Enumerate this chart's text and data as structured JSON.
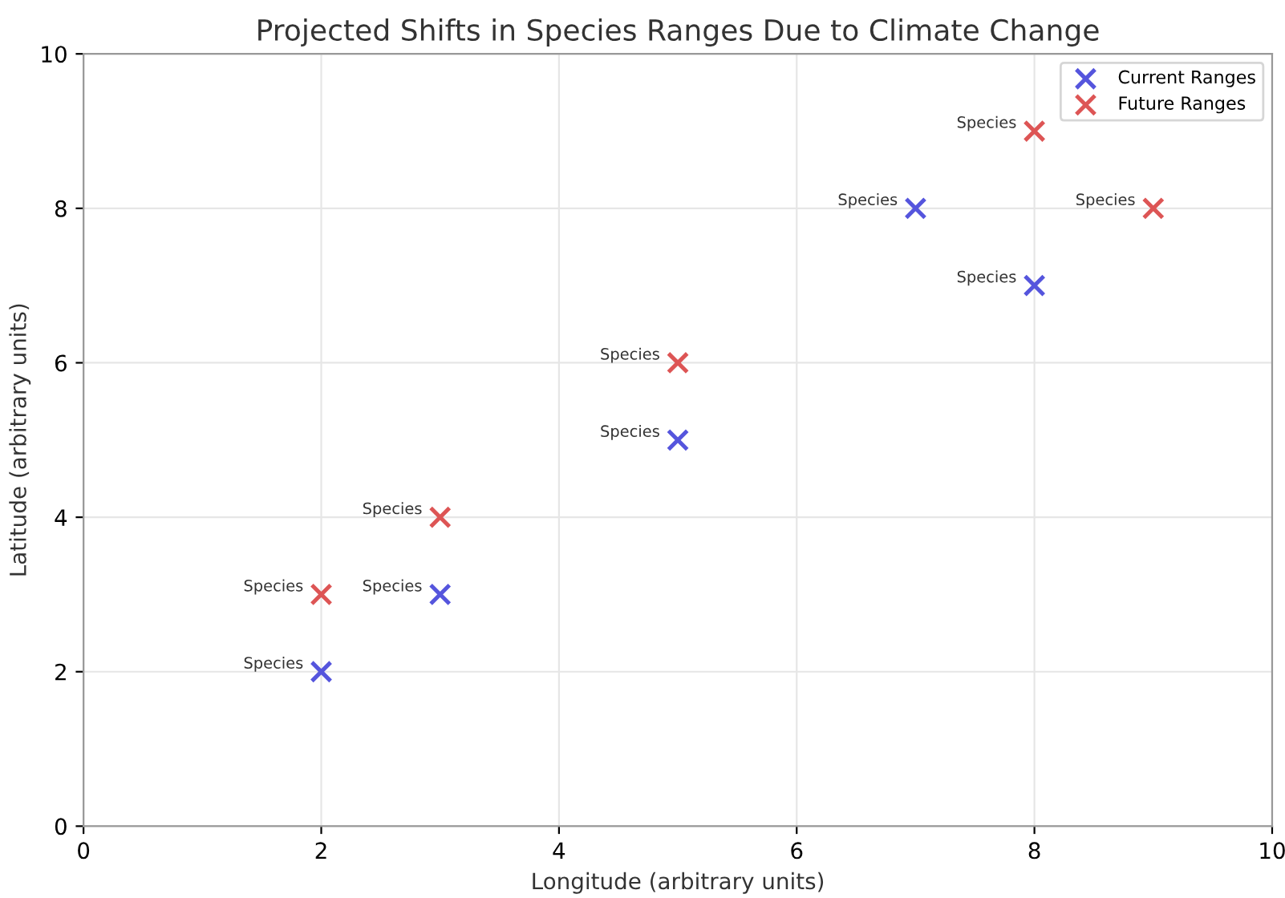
{
  "chart_data": {
    "type": "scatter",
    "title": "Projected Shifts in Species Ranges Due to Climate Change",
    "xlabel": "Longitude (arbitrary units)",
    "ylabel": "Latitude (arbitrary units)",
    "series": [
      {
        "name": "Current Ranges",
        "color": "#5555dd",
        "x": [
          2,
          3,
          5,
          7,
          8
        ],
        "values": [
          2,
          3,
          5,
          8,
          7
        ]
      },
      {
        "name": "Future Ranges",
        "color": "#dd5555",
        "x": [
          2,
          3,
          5,
          8,
          9
        ],
        "values": [
          3,
          4,
          6,
          9,
          8
        ]
      }
    ],
    "annotations": [
      {
        "text": "Species",
        "x": 2,
        "y": 2
      },
      {
        "text": "Species",
        "x": 3,
        "y": 3
      },
      {
        "text": "Species",
        "x": 5,
        "y": 5
      },
      {
        "text": "Species",
        "x": 7,
        "y": 8
      },
      {
        "text": "Species",
        "x": 8,
        "y": 7
      },
      {
        "text": "Species",
        "x": 2,
        "y": 3
      },
      {
        "text": "Species",
        "x": 3,
        "y": 4
      },
      {
        "text": "Species",
        "x": 5,
        "y": 6
      },
      {
        "text": "Species",
        "x": 8,
        "y": 9
      },
      {
        "text": "Species",
        "x": 9,
        "y": 8
      }
    ],
    "xlim": [
      0,
      10
    ],
    "ylim": [
      0,
      10
    ],
    "xticks": [
      0,
      2,
      4,
      6,
      8,
      10
    ],
    "yticks": [
      0,
      2,
      4,
      6,
      8,
      10
    ],
    "grid": true,
    "legend": "top right",
    "marker": "cross"
  }
}
